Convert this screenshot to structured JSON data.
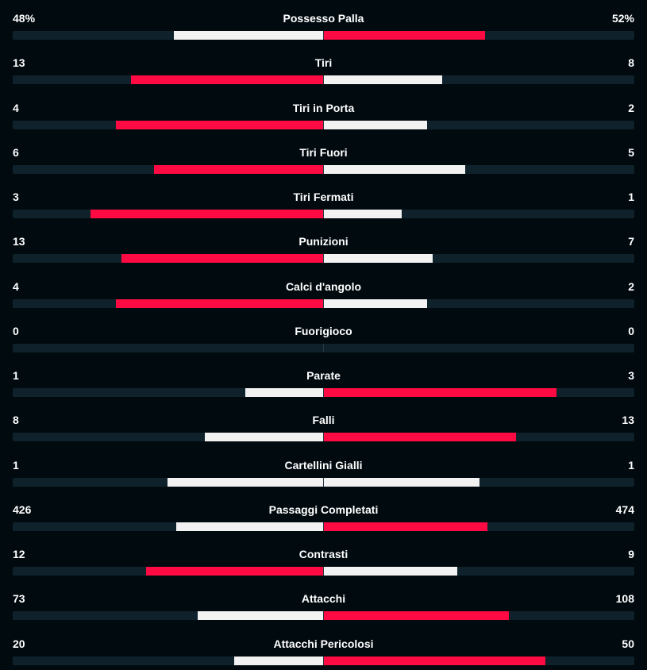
{
  "colors": {
    "background": "#010a0f",
    "track": "#0f222b",
    "leader": "#ff0a42",
    "trailer": "#f2f2f2",
    "text": "#ffffff"
  },
  "stats": [
    {
      "label": "Possesso Palla",
      "home": "48%",
      "away": "52%",
      "home_fraction": 0.48,
      "away_fraction": 0.52,
      "leader": "away"
    },
    {
      "label": "Tiri",
      "home": "13",
      "away": "8",
      "home_fraction": 0.619,
      "away_fraction": 0.381,
      "leader": "home"
    },
    {
      "label": "Tiri in Porta",
      "home": "4",
      "away": "2",
      "home_fraction": 0.667,
      "away_fraction": 0.333,
      "leader": "home"
    },
    {
      "label": "Tiri Fuori",
      "home": "6",
      "away": "5",
      "home_fraction": 0.545,
      "away_fraction": 0.455,
      "leader": "home"
    },
    {
      "label": "Tiri Fermati",
      "home": "3",
      "away": "1",
      "home_fraction": 0.75,
      "away_fraction": 0.25,
      "leader": "home"
    },
    {
      "label": "Punizioni",
      "home": "13",
      "away": "7",
      "home_fraction": 0.65,
      "away_fraction": 0.35,
      "leader": "home"
    },
    {
      "label": "Calci d'angolo",
      "home": "4",
      "away": "2",
      "home_fraction": 0.667,
      "away_fraction": 0.333,
      "leader": "home"
    },
    {
      "label": "Fuorigioco",
      "home": "0",
      "away": "0",
      "home_fraction": 0,
      "away_fraction": 0,
      "leader": "none"
    },
    {
      "label": "Parate",
      "home": "1",
      "away": "3",
      "home_fraction": 0.25,
      "away_fraction": 0.75,
      "leader": "away"
    },
    {
      "label": "Falli",
      "home": "8",
      "away": "13",
      "home_fraction": 0.381,
      "away_fraction": 0.619,
      "leader": "away"
    },
    {
      "label": "Cartellini Gialli",
      "home": "1",
      "away": "1",
      "home_fraction": 0.5,
      "away_fraction": 0.5,
      "leader": "none"
    },
    {
      "label": "Passaggi Completati",
      "home": "426",
      "away": "474",
      "home_fraction": 0.473,
      "away_fraction": 0.527,
      "leader": "away"
    },
    {
      "label": "Contrasti",
      "home": "12",
      "away": "9",
      "home_fraction": 0.571,
      "away_fraction": 0.429,
      "leader": "home"
    },
    {
      "label": "Attacchi",
      "home": "73",
      "away": "108",
      "home_fraction": 0.403,
      "away_fraction": 0.597,
      "leader": "away"
    },
    {
      "label": "Attacchi Pericolosi",
      "home": "20",
      "away": "50",
      "home_fraction": 0.286,
      "away_fraction": 0.714,
      "leader": "away"
    }
  ]
}
